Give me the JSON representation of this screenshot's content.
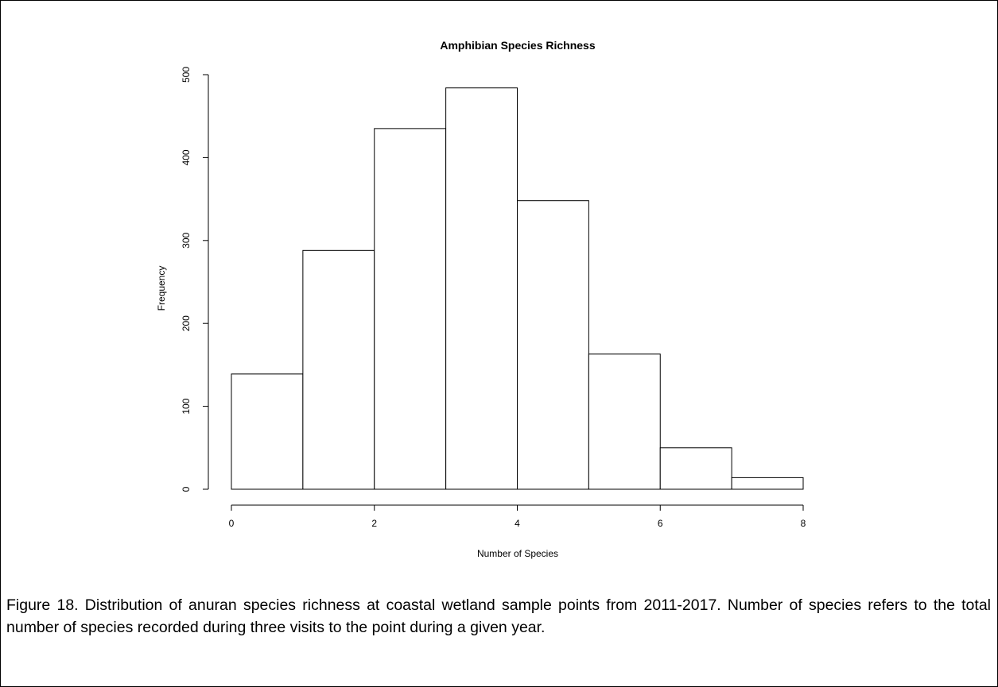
{
  "chart_data": {
    "type": "bar",
    "title": "Amphibian Species Richness",
    "xlabel": "Number of Species",
    "ylabel": "Frequency",
    "bins": [
      {
        "x0": 0,
        "x1": 1,
        "value": 139
      },
      {
        "x0": 1,
        "x1": 2,
        "value": 288
      },
      {
        "x0": 2,
        "x1": 3,
        "value": 435
      },
      {
        "x0": 3,
        "x1": 4,
        "value": 484
      },
      {
        "x0": 4,
        "x1": 5,
        "value": 348
      },
      {
        "x0": 5,
        "x1": 6,
        "value": 163
      },
      {
        "x0": 6,
        "x1": 7,
        "value": 50
      },
      {
        "x0": 7,
        "x1": 8,
        "value": 14
      }
    ],
    "xlim": [
      0,
      8
    ],
    "ylim": [
      0,
      500
    ],
    "x_ticks": [
      0,
      2,
      4,
      6,
      8
    ],
    "x_tick_labels": [
      "0",
      "2",
      "4",
      "6",
      "8"
    ],
    "y_ticks": [
      0,
      100,
      200,
      300,
      400,
      500
    ],
    "y_tick_labels": [
      "0",
      "100",
      "200",
      "300",
      "400",
      "500"
    ],
    "grid": false
  },
  "caption": "Figure 18. Distribution of anuran species richness at coastal wetland sample points from 2011-2017. Number of species refers to the total number of species recorded during three visits to the point during a given year."
}
